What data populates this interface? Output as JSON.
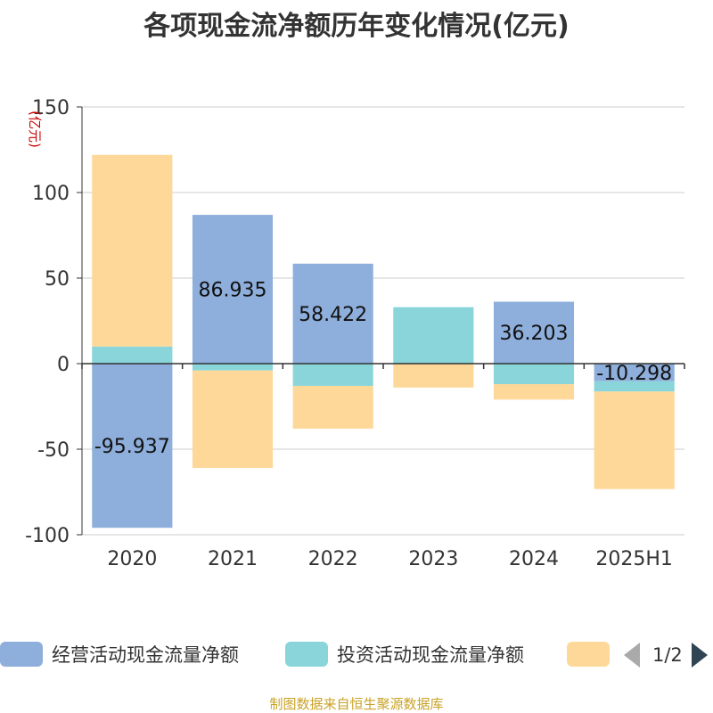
{
  "title": "各项现金流净额历年变化情况(亿元)",
  "source": "制图数据来自恒生聚源数据库",
  "legend_pager": {
    "text": "1/2"
  },
  "chart_data": {
    "type": "bar",
    "stacked": true,
    "y_unit_label": "(亿元)",
    "ylim": [
      -100,
      150
    ],
    "yticks": [
      150,
      100,
      50,
      0,
      -50,
      -100
    ],
    "grid": true,
    "legend_position": "bottom",
    "categories": [
      "2020",
      "2021",
      "2022",
      "2023",
      "2024",
      "2025H1"
    ],
    "series": [
      {
        "name": "经营活动现金流量净额",
        "color": "#8eaedb",
        "values": [
          -95.937,
          86.935,
          58.422,
          0,
          36.203,
          -10.298
        ],
        "labels": [
          "-95.937",
          "86.935",
          "58.422",
          "",
          "36.203",
          "-10.298"
        ]
      },
      {
        "name": "投资活动现金流量净额",
        "color": "#89d5d9",
        "values": [
          10,
          -4,
          -13,
          33,
          -12,
          -6
        ],
        "labels": [
          "",
          "",
          "",
          "",
          "",
          ""
        ]
      },
      {
        "name": "",
        "color": "#fdd899",
        "values": [
          112,
          -57,
          -25,
          -14,
          -9,
          -57
        ],
        "labels": [
          "",
          "",
          "",
          "",
          "",
          ""
        ]
      }
    ]
  }
}
